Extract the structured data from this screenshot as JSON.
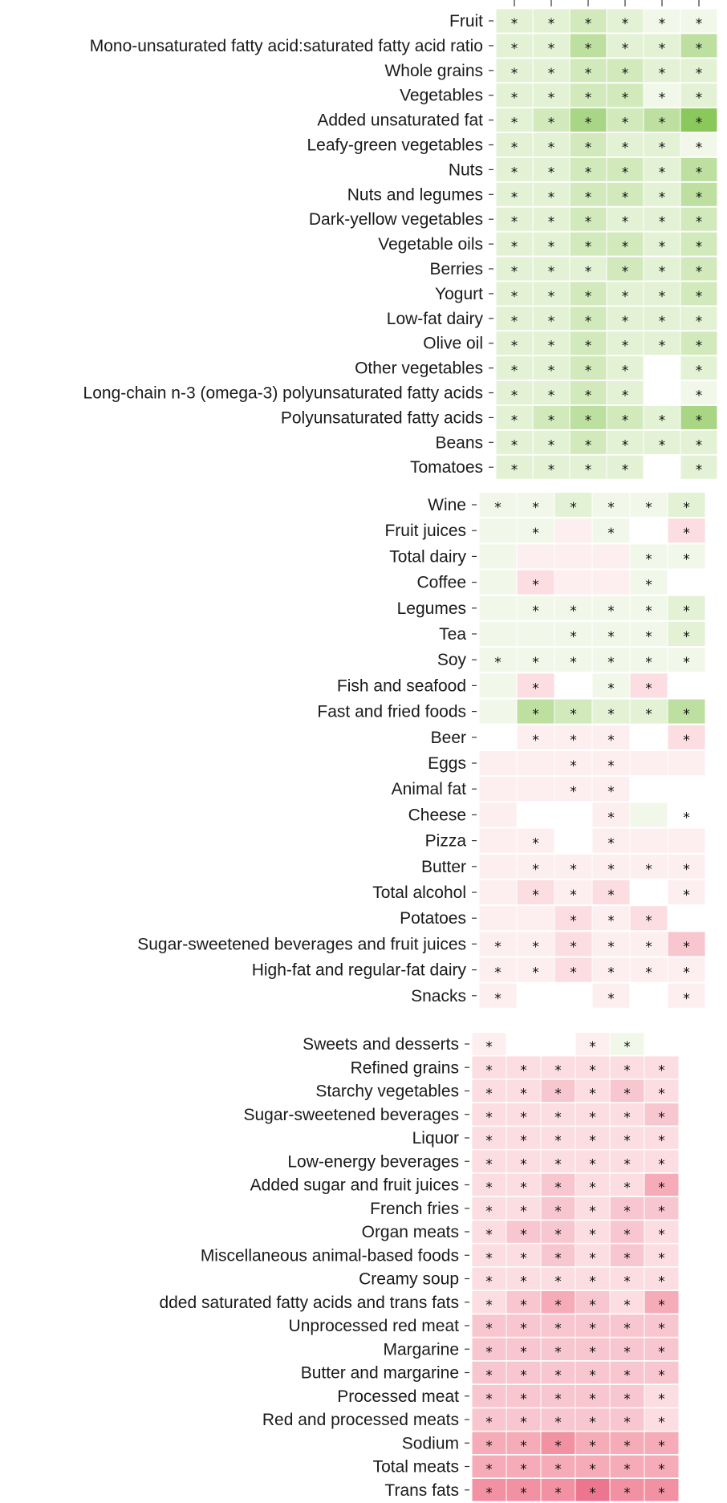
{
  "chart_data": [
    {
      "type": "heatmap",
      "columns": 6,
      "rows": [
        {
          "label": "Fruit",
          "cells": [
            2,
            2,
            3,
            2,
            1,
            1
          ],
          "stars": [
            1,
            1,
            1,
            1,
            1,
            1
          ]
        },
        {
          "label": "Mono-unsaturated fatty acid:saturated fatty acid ratio",
          "cells": [
            2,
            2,
            4,
            2,
            2,
            4
          ],
          "stars": [
            1,
            1,
            1,
            1,
            1,
            1
          ]
        },
        {
          "label": "Whole grains",
          "cells": [
            2,
            2,
            3,
            3,
            2,
            2
          ],
          "stars": [
            1,
            1,
            1,
            1,
            1,
            1
          ]
        },
        {
          "label": "Vegetables",
          "cells": [
            2,
            2,
            3,
            3,
            1,
            2
          ],
          "stars": [
            1,
            1,
            1,
            1,
            1,
            1
          ]
        },
        {
          "label": "Added unsaturated fat",
          "cells": [
            2,
            3,
            5,
            3,
            4,
            6
          ],
          "stars": [
            1,
            1,
            1,
            1,
            1,
            1
          ]
        },
        {
          "label": "Leafy-green vegetables",
          "cells": [
            2,
            2,
            3,
            2,
            2,
            1
          ],
          "stars": [
            1,
            1,
            1,
            1,
            1,
            1
          ]
        },
        {
          "label": "Nuts",
          "cells": [
            2,
            2,
            3,
            3,
            2,
            4
          ],
          "stars": [
            1,
            1,
            1,
            1,
            1,
            1
          ]
        },
        {
          "label": "Nuts and legumes",
          "cells": [
            2,
            2,
            3,
            3,
            2,
            4
          ],
          "stars": [
            1,
            1,
            1,
            1,
            1,
            1
          ]
        },
        {
          "label": "Dark-yellow vegetables",
          "cells": [
            2,
            2,
            3,
            2,
            2,
            3
          ],
          "stars": [
            1,
            1,
            1,
            1,
            1,
            1
          ]
        },
        {
          "label": "Vegetable oils",
          "cells": [
            2,
            2,
            3,
            3,
            2,
            3
          ],
          "stars": [
            1,
            1,
            1,
            1,
            1,
            1
          ]
        },
        {
          "label": "Berries",
          "cells": [
            2,
            2,
            2,
            3,
            2,
            3
          ],
          "stars": [
            1,
            1,
            1,
            1,
            1,
            1
          ]
        },
        {
          "label": "Yogurt",
          "cells": [
            2,
            2,
            3,
            2,
            2,
            3
          ],
          "stars": [
            1,
            1,
            1,
            1,
            1,
            1
          ]
        },
        {
          "label": "Low-fat dairy",
          "cells": [
            2,
            2,
            3,
            2,
            2,
            2
          ],
          "stars": [
            1,
            1,
            1,
            1,
            1,
            1
          ]
        },
        {
          "label": "Olive oil",
          "cells": [
            2,
            2,
            3,
            2,
            2,
            3
          ],
          "stars": [
            1,
            1,
            1,
            1,
            1,
            1
          ]
        },
        {
          "label": "Other vegetables",
          "cells": [
            2,
            2,
            3,
            2,
            0,
            2
          ],
          "stars": [
            1,
            1,
            1,
            1,
            0,
            1
          ]
        },
        {
          "label": "Long-chain n-3 (omega-3) polyunsaturated fatty acids",
          "cells": [
            2,
            2,
            3,
            2,
            0,
            1
          ],
          "stars": [
            1,
            1,
            1,
            1,
            0,
            1
          ]
        },
        {
          "label": "Polyunsaturated fatty acids",
          "cells": [
            2,
            3,
            4,
            3,
            2,
            5
          ],
          "stars": [
            1,
            1,
            1,
            1,
            1,
            1
          ]
        },
        {
          "label": "Beans",
          "cells": [
            2,
            2,
            3,
            2,
            2,
            2
          ],
          "stars": [
            1,
            1,
            1,
            1,
            1,
            1
          ]
        },
        {
          "label": "Tomatoes",
          "cells": [
            2,
            2,
            2,
            2,
            0,
            2
          ],
          "stars": [
            1,
            1,
            1,
            1,
            0,
            1
          ]
        }
      ]
    },
    {
      "type": "heatmap",
      "columns": 6,
      "rows": [
        {
          "label": "Wine",
          "cells": [
            1,
            1,
            2,
            1,
            1,
            2
          ],
          "stars": [
            1,
            1,
            1,
            1,
            1,
            1
          ]
        },
        {
          "label": "Fruit juices",
          "cells": [
            1,
            1,
            -1,
            1,
            0,
            -2
          ],
          "stars": [
            0,
            1,
            0,
            1,
            0,
            1
          ]
        },
        {
          "label": "Total dairy",
          "cells": [
            1,
            -1,
            -1,
            -1,
            1,
            1
          ],
          "stars": [
            0,
            0,
            0,
            0,
            1,
            1
          ]
        },
        {
          "label": "Coffee",
          "cells": [
            1,
            -2,
            -1,
            -1,
            1,
            0
          ],
          "stars": [
            0,
            1,
            0,
            0,
            1,
            0
          ]
        },
        {
          "label": "Legumes",
          "cells": [
            1,
            1,
            1,
            1,
            1,
            2
          ],
          "stars": [
            0,
            1,
            1,
            1,
            1,
            1
          ]
        },
        {
          "label": "Tea",
          "cells": [
            1,
            1,
            1,
            1,
            1,
            2
          ],
          "stars": [
            0,
            0,
            1,
            1,
            1,
            1
          ]
        },
        {
          "label": "Soy",
          "cells": [
            1,
            1,
            1,
            1,
            1,
            1
          ],
          "stars": [
            1,
            1,
            1,
            1,
            1,
            1
          ]
        },
        {
          "label": "Fish and seafood",
          "cells": [
            1,
            -2,
            0,
            1,
            -2,
            0
          ],
          "stars": [
            0,
            1,
            0,
            1,
            1,
            0
          ]
        },
        {
          "label": "Fast and fried foods",
          "cells": [
            1,
            4,
            3,
            2,
            2,
            4
          ],
          "stars": [
            0,
            1,
            1,
            1,
            1,
            1
          ]
        },
        {
          "label": "Beer",
          "cells": [
            0,
            -1,
            -1,
            -1,
            0,
            -2
          ],
          "stars": [
            0,
            1,
            1,
            1,
            0,
            1
          ]
        },
        {
          "label": "Eggs",
          "cells": [
            -1,
            -1,
            -1,
            -1,
            -1,
            -1
          ],
          "stars": [
            0,
            0,
            1,
            1,
            0,
            0
          ]
        },
        {
          "label": "Animal fat",
          "cells": [
            -1,
            -1,
            -1,
            -1,
            0,
            0
          ],
          "stars": [
            0,
            0,
            1,
            1,
            0,
            0
          ]
        },
        {
          "label": "Cheese",
          "cells": [
            -1,
            0,
            0,
            -1,
            1,
            0
          ],
          "stars": [
            0,
            0,
            0,
            1,
            0,
            1
          ]
        },
        {
          "label": "Pizza",
          "cells": [
            -1,
            -1,
            0,
            -1,
            -1,
            -1
          ],
          "stars": [
            0,
            1,
            0,
            1,
            0,
            0
          ]
        },
        {
          "label": "Butter",
          "cells": [
            -1,
            -1,
            -1,
            -1,
            -1,
            -1
          ],
          "stars": [
            0,
            1,
            1,
            1,
            1,
            1
          ]
        },
        {
          "label": "Total alcohol",
          "cells": [
            -1,
            -2,
            -1,
            -2,
            0,
            -1
          ],
          "stars": [
            0,
            1,
            1,
            1,
            0,
            1
          ]
        },
        {
          "label": "Potatoes",
          "cells": [
            -1,
            -1,
            -2,
            -1,
            -2,
            0
          ],
          "stars": [
            0,
            0,
            1,
            1,
            1,
            0
          ]
        },
        {
          "label": "Sugar-sweetened beverages and fruit juices",
          "cells": [
            -1,
            -1,
            -2,
            -1,
            -1,
            -3
          ],
          "stars": [
            1,
            1,
            1,
            1,
            1,
            1
          ]
        },
        {
          "label": "High-fat and regular-fat dairy",
          "cells": [
            -1,
            -1,
            -2,
            -1,
            -1,
            -1
          ],
          "stars": [
            1,
            1,
            1,
            1,
            1,
            1
          ]
        },
        {
          "label": "Snacks",
          "cells": [
            -1,
            0,
            0,
            -1,
            0,
            -1
          ],
          "stars": [
            1,
            0,
            0,
            1,
            0,
            1
          ]
        }
      ]
    },
    {
      "type": "heatmap",
      "columns": 6,
      "rows": [
        {
          "label": "Sweets and desserts",
          "cells": [
            -1,
            0,
            0,
            -1,
            1,
            0
          ],
          "stars": [
            1,
            0,
            0,
            1,
            1,
            0
          ]
        },
        {
          "label": "Refined grains",
          "cells": [
            -2,
            -2,
            -2,
            -2,
            -2,
            -2
          ],
          "stars": [
            1,
            1,
            1,
            1,
            1,
            1
          ]
        },
        {
          "label": "Starchy vegetables",
          "cells": [
            -2,
            -2,
            -3,
            -2,
            -3,
            -2
          ],
          "stars": [
            1,
            1,
            1,
            1,
            1,
            1
          ]
        },
        {
          "label": "Sugar-sweetened beverages",
          "cells": [
            -2,
            -2,
            -2,
            -2,
            -2,
            -3
          ],
          "stars": [
            1,
            1,
            1,
            1,
            1,
            1
          ]
        },
        {
          "label": "Liquor",
          "cells": [
            -2,
            -2,
            -2,
            -2,
            -2,
            -2
          ],
          "stars": [
            1,
            1,
            1,
            1,
            1,
            1
          ]
        },
        {
          "label": "Low-energy beverages",
          "cells": [
            -2,
            -2,
            -2,
            -2,
            -2,
            -2
          ],
          "stars": [
            1,
            1,
            1,
            1,
            1,
            1
          ]
        },
        {
          "label": "Added sugar and fruit juices",
          "cells": [
            -2,
            -2,
            -3,
            -2,
            -2,
            -4
          ],
          "stars": [
            1,
            1,
            1,
            1,
            1,
            1
          ]
        },
        {
          "label": "French fries",
          "cells": [
            -2,
            -2,
            -3,
            -2,
            -3,
            -3
          ],
          "stars": [
            1,
            1,
            1,
            1,
            1,
            1
          ]
        },
        {
          "label": "Organ meats",
          "cells": [
            -2,
            -3,
            -3,
            -2,
            -3,
            -2
          ],
          "stars": [
            1,
            1,
            1,
            1,
            1,
            1
          ]
        },
        {
          "label": "Miscellaneous animal-based foods",
          "cells": [
            -2,
            -2,
            -3,
            -2,
            -3,
            -2
          ],
          "stars": [
            1,
            1,
            1,
            1,
            1,
            1
          ]
        },
        {
          "label": "Creamy soup",
          "cells": [
            -2,
            -2,
            -2,
            -2,
            -2,
            -2
          ],
          "stars": [
            1,
            1,
            1,
            1,
            1,
            1
          ]
        },
        {
          "label": "dded saturated fatty acids and trans fats",
          "cells": [
            -2,
            -3,
            -4,
            -3,
            -2,
            -4
          ],
          "stars": [
            1,
            1,
            1,
            1,
            1,
            1
          ]
        },
        {
          "label": "Unprocessed red meat",
          "cells": [
            -3,
            -3,
            -3,
            -3,
            -3,
            -3
          ],
          "stars": [
            1,
            1,
            1,
            1,
            1,
            1
          ]
        },
        {
          "label": "Margarine",
          "cells": [
            -3,
            -3,
            -3,
            -3,
            -3,
            -3
          ],
          "stars": [
            1,
            1,
            1,
            1,
            1,
            1
          ]
        },
        {
          "label": "Butter and margarine",
          "cells": [
            -3,
            -3,
            -3,
            -3,
            -3,
            -3
          ],
          "stars": [
            1,
            1,
            1,
            1,
            1,
            1
          ]
        },
        {
          "label": "Processed meat",
          "cells": [
            -3,
            -3,
            -3,
            -3,
            -3,
            -2
          ],
          "stars": [
            1,
            1,
            1,
            1,
            1,
            1
          ]
        },
        {
          "label": "Red and processed meats",
          "cells": [
            -3,
            -3,
            -3,
            -3,
            -3,
            -2
          ],
          "stars": [
            1,
            1,
            1,
            1,
            1,
            1
          ]
        },
        {
          "label": "Sodium",
          "cells": [
            -4,
            -4,
            -5,
            -4,
            -4,
            -4
          ],
          "stars": [
            1,
            1,
            1,
            1,
            1,
            1
          ]
        },
        {
          "label": "Total meats",
          "cells": [
            -4,
            -4,
            -4,
            -4,
            -4,
            -4
          ],
          "stars": [
            1,
            1,
            1,
            1,
            1,
            1
          ]
        },
        {
          "label": "Trans fats",
          "cells": [
            -5,
            -5,
            -5,
            -6,
            -5,
            -5
          ],
          "stars": [
            1,
            1,
            1,
            1,
            1,
            1
          ]
        }
      ]
    }
  ],
  "star_symbol": "*",
  "colors": {
    "positive": [
      "#ffffff",
      "#f1f8ea",
      "#e3f2d4",
      "#d2eabb",
      "#bde0a0",
      "#a8d684",
      "#8bc85b"
    ],
    "negative": [
      "#ffffff",
      "#fdeef0",
      "#fbdde2",
      "#f8c6ce",
      "#f5acb8",
      "#f191a2",
      "#ec7690"
    ]
  }
}
